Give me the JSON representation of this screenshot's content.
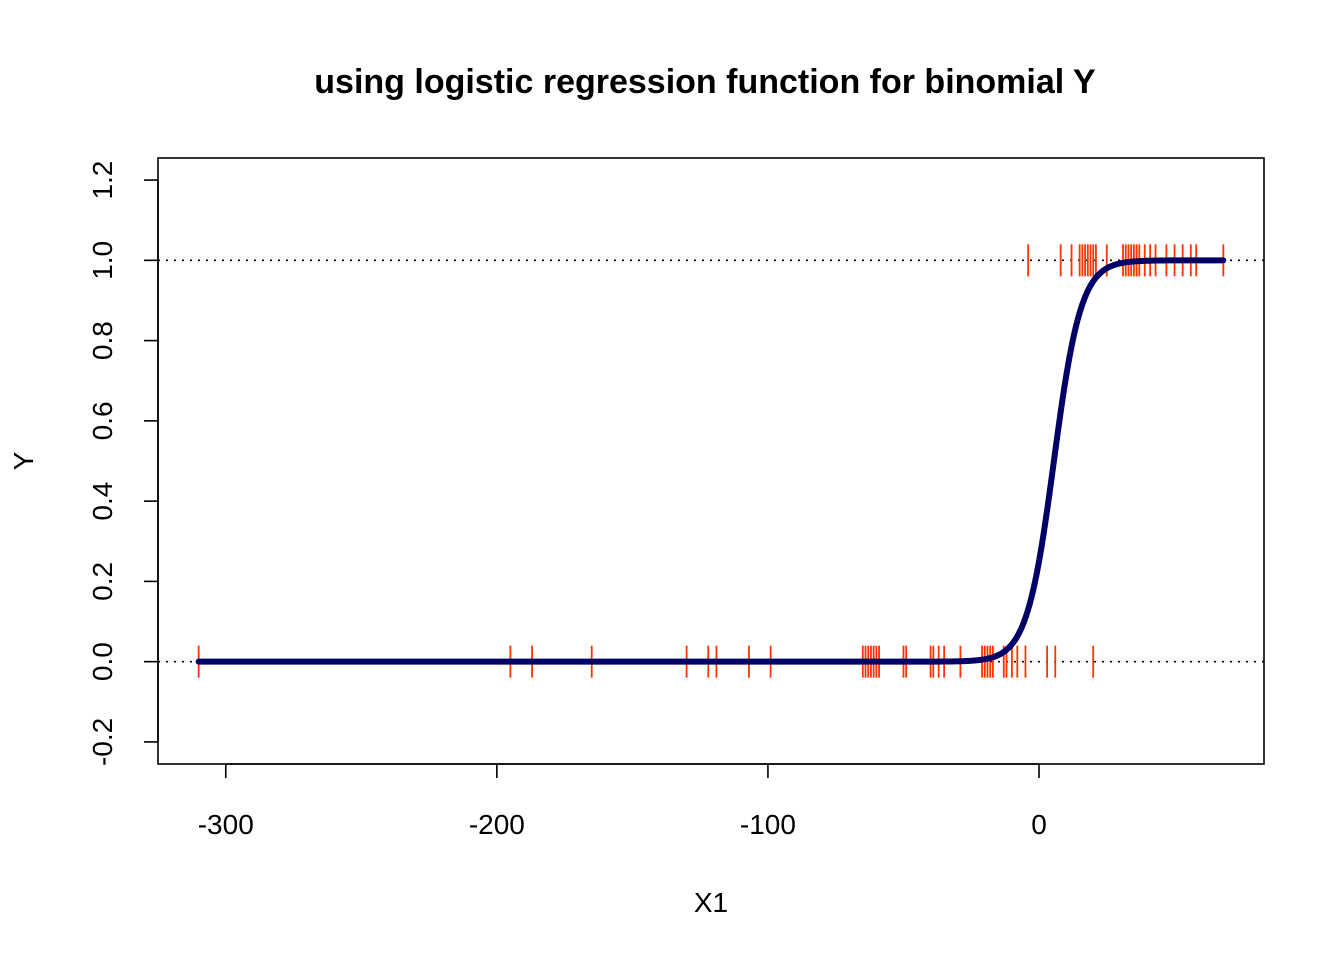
{
  "chart_data": {
    "type": "scatter",
    "title": "using logistic regression function for binomial Y",
    "xlabel": "X1",
    "ylabel": "Y",
    "xlim": [
      -325,
      83
    ],
    "ylim": [
      -0.255,
      1.255
    ],
    "xticks": [
      -300,
      -200,
      -100,
      0
    ],
    "xtick_labels": [
      "-300",
      "-200",
      "-100",
      "0"
    ],
    "yticks": [
      -0.2,
      0.0,
      0.2,
      0.4,
      0.6,
      0.8,
      1.0,
      1.2
    ],
    "ytick_labels": [
      "-0.2",
      "0.0",
      "0.2",
      "0.4",
      "0.6",
      "0.8",
      "1.0",
      "1.2"
    ],
    "reference_lines": [
      0,
      1
    ],
    "colors": {
      "rug": "#ff3300",
      "curve": "#000066",
      "reference": "#000000"
    },
    "series": [
      {
        "kind": "rug",
        "y": 0,
        "x": [
          -310,
          -195,
          -187,
          -165,
          -130,
          -122,
          -119,
          -107,
          -99,
          -65,
          -64,
          -63,
          -62,
          -61,
          -60,
          -59,
          -50,
          -49,
          -40,
          -39,
          -37,
          -35,
          -29,
          -21,
          -20,
          -19,
          -18,
          -17,
          -13,
          -12,
          -10,
          -8,
          -5,
          3,
          6,
          20
        ]
      },
      {
        "kind": "rug",
        "y": 1,
        "x": [
          -4,
          8,
          12,
          15,
          16,
          17,
          18,
          19,
          20,
          21,
          25,
          31,
          32,
          33,
          34,
          35,
          36,
          37,
          39,
          41,
          43,
          47,
          50,
          53,
          56,
          58,
          68
        ]
      },
      {
        "kind": "logistic-curve",
        "x_range": [
          -310,
          68
        ],
        "intercept": -1.1,
        "slope": 0.2
      }
    ]
  }
}
